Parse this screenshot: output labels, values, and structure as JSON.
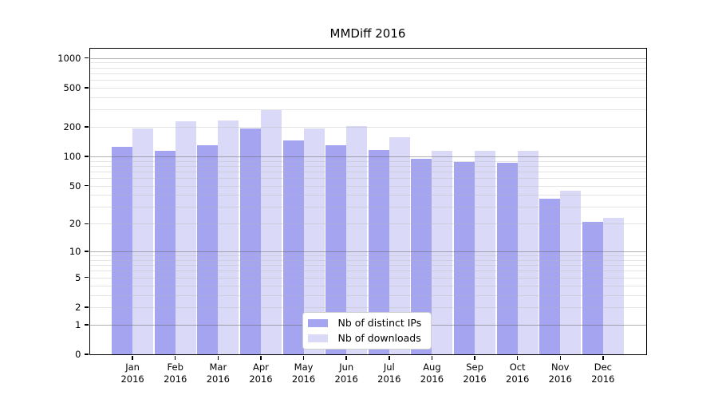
{
  "chart_data": {
    "type": "bar",
    "title": "MMDiff 2016",
    "x_ticks": [
      {
        "month": "Jan",
        "year": "2016"
      },
      {
        "month": "Feb",
        "year": "2016"
      },
      {
        "month": "Mar",
        "year": "2016"
      },
      {
        "month": "Apr",
        "year": "2016"
      },
      {
        "month": "May",
        "year": "2016"
      },
      {
        "month": "Jun",
        "year": "2016"
      },
      {
        "month": "Jul",
        "year": "2016"
      },
      {
        "month": "Aug",
        "year": "2016"
      },
      {
        "month": "Sep",
        "year": "2016"
      },
      {
        "month": "Oct",
        "year": "2016"
      },
      {
        "month": "Nov",
        "year": "2016"
      },
      {
        "month": "Dec",
        "year": "2016"
      }
    ],
    "series": [
      {
        "name": "Nb of distinct IPs",
        "color": "#a4a4f1",
        "values": [
          126,
          113,
          131,
          194,
          146,
          129,
          116,
          94,
          87,
          86,
          37,
          21
        ]
      },
      {
        "name": "Nb of downloads",
        "color": "#dadaf8",
        "values": [
          192,
          228,
          233,
          294,
          194,
          204,
          156,
          114,
          115,
          115,
          44,
          23
        ]
      }
    ],
    "y_ticks": [
      0,
      1,
      2,
      5,
      10,
      20,
      50,
      100,
      200,
      500,
      1000
    ],
    "y_scale": "log10(value+1)",
    "ylim": [
      0,
      1256
    ],
    "grid": {
      "major_at": [
        1,
        10,
        100,
        1000
      ],
      "minor_rule": "2-9 per decade"
    },
    "legend": {
      "position": "lower center"
    }
  },
  "colors": {
    "background": "#ffffff",
    "spine": "#000000",
    "bar_distinct_ips": "#a4a4f1",
    "bar_downloads": "#dadaf8",
    "major_grid": "#b5b5b5",
    "minor_grid": "#e6e6e6",
    "legend_border": "#cfcfcf",
    "text": "#000000"
  }
}
